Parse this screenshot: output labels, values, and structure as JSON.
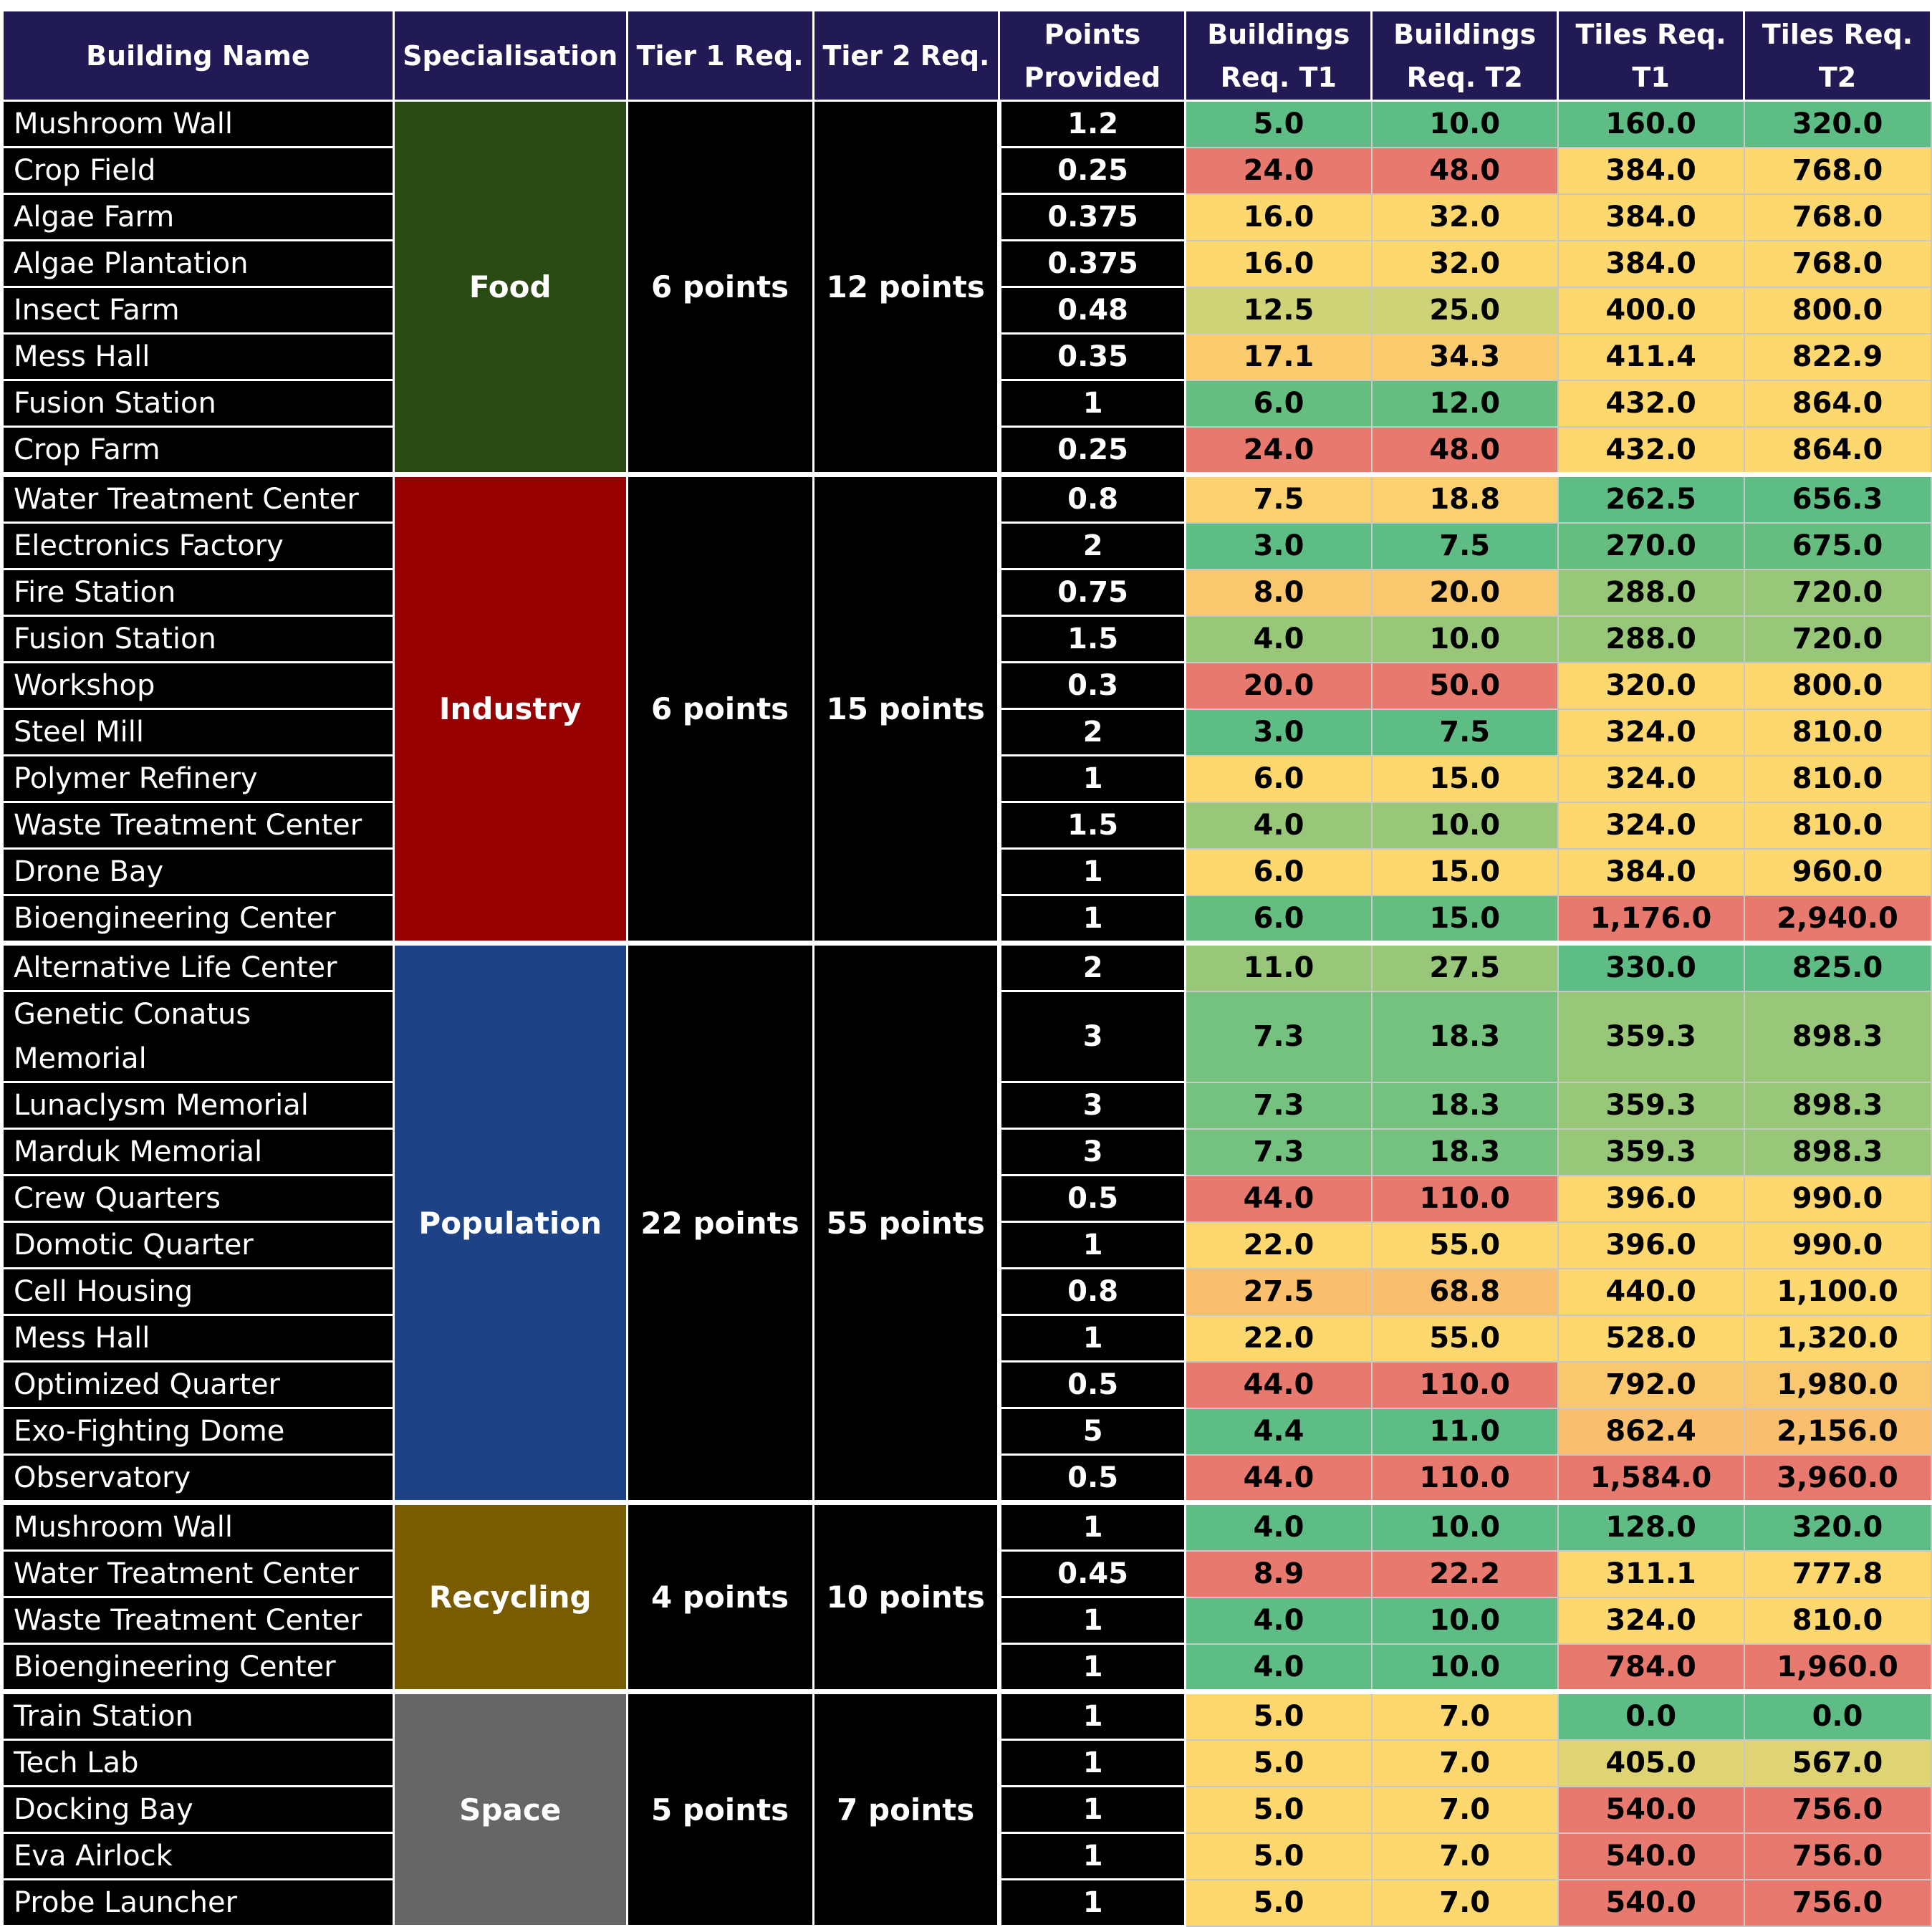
{
  "headers": {
    "building_name": "Building Name",
    "specialisation": "Specialisation",
    "tier1": "Tier 1 Req.",
    "tier2": "Tier 2 Req.",
    "points": "Points Provided",
    "bt1": "Buildings Req. T1",
    "bt2": "Buildings Req. T2",
    "tt1": "Tiles Req. T1",
    "tt2": "Tiles Req. T2"
  },
  "colors": {
    "header_bg": "#211a54",
    "food": "#2a4a14",
    "industry": "#960000",
    "population": "#1e4286",
    "recycling": "#7a5c00",
    "space": "#666666",
    "scale_green": "#5dbd84",
    "scale_yellow": "#fdd86e",
    "scale_orange": "#f9bf6e",
    "scale_red": "#e8796e"
  },
  "groups": [
    {
      "name": "Food",
      "color": "#2a4a14",
      "tier1": "6 points",
      "tier2": "12 points",
      "rows": [
        {
          "name": "Mushroom Wall",
          "points": "1.2",
          "bt1": "5.0",
          "bt2": "10.0",
          "tt1": "160.0",
          "tt2": "320.0",
          "c": [
            "#5dbd84",
            "#5dbd84",
            "#5dbd84",
            "#5dbd84"
          ]
        },
        {
          "name": "Crop Field",
          "points": "0.25",
          "bt1": "24.0",
          "bt2": "48.0",
          "tt1": "384.0",
          "tt2": "768.0",
          "c": [
            "#e8796e",
            "#e8796e",
            "#fdd86e",
            "#fdd86e"
          ]
        },
        {
          "name": "Algae Farm",
          "points": "0.375",
          "bt1": "16.0",
          "bt2": "32.0",
          "tt1": "384.0",
          "tt2": "768.0",
          "c": [
            "#fdd86e",
            "#fdd86e",
            "#fdd86e",
            "#fdd86e"
          ]
        },
        {
          "name": "Algae Plantation",
          "points": "0.375",
          "bt1": "16.0",
          "bt2": "32.0",
          "tt1": "384.0",
          "tt2": "768.0",
          "c": [
            "#fdd86e",
            "#fdd86e",
            "#fdd86e",
            "#fdd86e"
          ]
        },
        {
          "name": "Insect Farm",
          "points": "0.48",
          "bt1": "12.5",
          "bt2": "25.0",
          "tt1": "400.0",
          "tt2": "800.0",
          "c": [
            "#cfd377",
            "#cfd377",
            "#fdd86e",
            "#fdd86e"
          ]
        },
        {
          "name": "Mess Hall",
          "points": "0.35",
          "bt1": "17.1",
          "bt2": "34.3",
          "tt1": "411.4",
          "tt2": "822.9",
          "c": [
            "#fbcc6e",
            "#fbcc6e",
            "#fdd86e",
            "#fdd86e"
          ]
        },
        {
          "name": "Fusion Station",
          "points": "1",
          "bt1": "6.0",
          "bt2": "12.0",
          "tt1": "432.0",
          "tt2": "864.0",
          "c": [
            "#66bd80",
            "#66bd80",
            "#fdd86e",
            "#fdd86e"
          ]
        },
        {
          "name": "Crop Farm",
          "points": "0.25",
          "bt1": "24.0",
          "bt2": "48.0",
          "tt1": "432.0",
          "tt2": "864.0",
          "c": [
            "#e8796e",
            "#e8796e",
            "#fdd86e",
            "#fdd86e"
          ]
        }
      ]
    },
    {
      "name": "Industry",
      "color": "#960000",
      "tier1": "6 points",
      "tier2": "15 points",
      "rows": [
        {
          "name": "Water Treatment Center",
          "points": "0.8",
          "bt1": "7.5",
          "bt2": "18.8",
          "tt1": "262.5",
          "tt2": "656.3",
          "c": [
            "#fbd06e",
            "#fbd06e",
            "#5dbd84",
            "#5dbd84"
          ]
        },
        {
          "name": "Electronics Factory",
          "points": "2",
          "bt1": "3.0",
          "bt2": "7.5",
          "tt1": "270.0",
          "tt2": "675.0",
          "c": [
            "#5dbd84",
            "#5dbd84",
            "#66bd80",
            "#66bd80"
          ]
        },
        {
          "name": "Fire Station",
          "points": "0.75",
          "bt1": "8.0",
          "bt2": "20.0",
          "tt1": "288.0",
          "tt2": "720.0",
          "c": [
            "#f9c86e",
            "#f9c86e",
            "#98c77a",
            "#98c77a"
          ]
        },
        {
          "name": "Fusion Station",
          "points": "1.5",
          "bt1": "4.0",
          "bt2": "10.0",
          "tt1": "288.0",
          "tt2": "720.0",
          "c": [
            "#98c77a",
            "#98c77a",
            "#98c77a",
            "#98c77a"
          ]
        },
        {
          "name": "Workshop",
          "points": "0.3",
          "bt1": "20.0",
          "bt2": "50.0",
          "tt1": "320.0",
          "tt2": "800.0",
          "c": [
            "#e8796e",
            "#e8796e",
            "#fdd86e",
            "#fdd86e"
          ]
        },
        {
          "name": "Steel Mill",
          "points": "2",
          "bt1": "3.0",
          "bt2": "7.5",
          "tt1": "324.0",
          "tt2": "810.0",
          "c": [
            "#5dbd84",
            "#5dbd84",
            "#fdd86e",
            "#fdd86e"
          ]
        },
        {
          "name": "Polymer Refinery",
          "points": "1",
          "bt1": "6.0",
          "bt2": "15.0",
          "tt1": "324.0",
          "tt2": "810.0",
          "c": [
            "#fdd86e",
            "#fdd86e",
            "#fdd86e",
            "#fdd86e"
          ]
        },
        {
          "name": "Waste Treatment Center",
          "points": "1.5",
          "bt1": "4.0",
          "bt2": "10.0",
          "tt1": "324.0",
          "tt2": "810.0",
          "c": [
            "#98c77a",
            "#98c77a",
            "#fdd86e",
            "#fdd86e"
          ]
        },
        {
          "name": "Drone Bay",
          "points": "1",
          "bt1": "6.0",
          "bt2": "15.0",
          "tt1": "384.0",
          "tt2": "960.0",
          "c": [
            "#fdd86e",
            "#fdd86e",
            "#fdd86e",
            "#fdd86e"
          ]
        },
        {
          "name": "Bioengineering Center",
          "points": "1",
          "bt1": "6.0",
          "bt2": "15.0",
          "tt1": "1,176.0",
          "tt2": "2,940.0",
          "c": [
            "#66bd80",
            "#66bd80",
            "#e8796e",
            "#e8796e"
          ]
        }
      ]
    },
    {
      "name": "Population",
      "color": "#1e4286",
      "tier1": "22 points",
      "tier2": "55 points",
      "rows": [
        {
          "name": "Alternative Life Center",
          "points": "2",
          "bt1": "11.0",
          "bt2": "27.5",
          "tt1": "330.0",
          "tt2": "825.0",
          "c": [
            "#98c77a",
            "#98c77a",
            "#5dbd84",
            "#5dbd84"
          ]
        },
        {
          "name": "Genetic Conatus Memorial",
          "tall": true,
          "points": "3",
          "bt1": "7.3",
          "bt2": "18.3",
          "tt1": "359.3",
          "tt2": "898.3",
          "c": [
            "#75c17f",
            "#75c17f",
            "#98c77a",
            "#98c77a"
          ]
        },
        {
          "name": "Lunaclysm Memorial",
          "points": "3",
          "bt1": "7.3",
          "bt2": "18.3",
          "tt1": "359.3",
          "tt2": "898.3",
          "c": [
            "#75c17f",
            "#75c17f",
            "#98c77a",
            "#98c77a"
          ]
        },
        {
          "name": "Marduk Memorial",
          "points": "3",
          "bt1": "7.3",
          "bt2": "18.3",
          "tt1": "359.3",
          "tt2": "898.3",
          "c": [
            "#75c17f",
            "#75c17f",
            "#98c77a",
            "#98c77a"
          ]
        },
        {
          "name": "Crew Quarters",
          "points": "0.5",
          "bt1": "44.0",
          "bt2": "110.0",
          "tt1": "396.0",
          "tt2": "990.0",
          "c": [
            "#e8796e",
            "#e8796e",
            "#fdd86e",
            "#fdd86e"
          ]
        },
        {
          "name": "Domotic Quarter",
          "points": "1",
          "bt1": "22.0",
          "bt2": "55.0",
          "tt1": "396.0",
          "tt2": "990.0",
          "c": [
            "#fdd86e",
            "#fdd86e",
            "#fdd86e",
            "#fdd86e"
          ]
        },
        {
          "name": "Cell Housing",
          "points": "0.8",
          "bt1": "27.5",
          "bt2": "68.8",
          "tt1": "440.0",
          "tt2": "1,100.0",
          "c": [
            "#f9bf6e",
            "#f9bf6e",
            "#fdd86e",
            "#fdd86e"
          ]
        },
        {
          "name": "Mess Hall",
          "points": "1",
          "bt1": "22.0",
          "bt2": "55.0",
          "tt1": "528.0",
          "tt2": "1,320.0",
          "c": [
            "#fdd86e",
            "#fdd86e",
            "#fdd86e",
            "#fdd86e"
          ]
        },
        {
          "name": "Optimized Quarter",
          "points": "0.5",
          "bt1": "44.0",
          "bt2": "110.0",
          "tt1": "792.0",
          "tt2": "1,980.0",
          "c": [
            "#e8796e",
            "#e8796e",
            "#f9c86e",
            "#f9c86e"
          ]
        },
        {
          "name": "Exo-Fighting Dome",
          "points": "5",
          "bt1": "4.4",
          "bt2": "11.0",
          "tt1": "862.4",
          "tt2": "2,156.0",
          "c": [
            "#5dbd84",
            "#5dbd84",
            "#f9bf6e",
            "#f9bf6e"
          ]
        },
        {
          "name": "Observatory",
          "points": "0.5",
          "bt1": "44.0",
          "bt2": "110.0",
          "tt1": "1,584.0",
          "tt2": "3,960.0",
          "c": [
            "#e8796e",
            "#e8796e",
            "#e8796e",
            "#e8796e"
          ]
        }
      ]
    },
    {
      "name": "Recycling",
      "color": "#7a5c00",
      "tier1": "4 points",
      "tier2": "10 points",
      "rows": [
        {
          "name": "Mushroom Wall",
          "points": "1",
          "bt1": "4.0",
          "bt2": "10.0",
          "tt1": "128.0",
          "tt2": "320.0",
          "c": [
            "#5dbd84",
            "#5dbd84",
            "#5dbd84",
            "#5dbd84"
          ]
        },
        {
          "name": "Water Treatment Center",
          "points": "0.45",
          "bt1": "8.9",
          "bt2": "22.2",
          "tt1": "311.1",
          "tt2": "777.8",
          "c": [
            "#e8796e",
            "#e8796e",
            "#fdd86e",
            "#fdd86e"
          ]
        },
        {
          "name": "Waste Treatment Center",
          "points": "1",
          "bt1": "4.0",
          "bt2": "10.0",
          "tt1": "324.0",
          "tt2": "810.0",
          "c": [
            "#5dbd84",
            "#5dbd84",
            "#fdd86e",
            "#fdd86e"
          ]
        },
        {
          "name": "Bioengineering Center",
          "points": "1",
          "bt1": "4.0",
          "bt2": "10.0",
          "tt1": "784.0",
          "tt2": "1,960.0",
          "c": [
            "#5dbd84",
            "#5dbd84",
            "#e8796e",
            "#e8796e"
          ]
        }
      ]
    },
    {
      "name": "Space",
      "color": "#666666",
      "tier1": "5 points",
      "tier2": "7 points",
      "rows": [
        {
          "name": "Train Station",
          "points": "1",
          "bt1": "5.0",
          "bt2": "7.0",
          "tt1": "0.0",
          "tt2": "0.0",
          "c": [
            "#fdd86e",
            "#fdd86e",
            "#5dbd84",
            "#5dbd84"
          ]
        },
        {
          "name": "Tech Lab",
          "points": "1",
          "bt1": "5.0",
          "bt2": "7.0",
          "tt1": "405.0",
          "tt2": "567.0",
          "c": [
            "#fdd86e",
            "#fdd86e",
            "#dfd474",
            "#dfd474"
          ]
        },
        {
          "name": "Docking Bay",
          "points": "1",
          "bt1": "5.0",
          "bt2": "7.0",
          "tt1": "540.0",
          "tt2": "756.0",
          "c": [
            "#fdd86e",
            "#fdd86e",
            "#e8796e",
            "#e8796e"
          ]
        },
        {
          "name": "Eva Airlock",
          "points": "1",
          "bt1": "5.0",
          "bt2": "7.0",
          "tt1": "540.0",
          "tt2": "756.0",
          "c": [
            "#fdd86e",
            "#fdd86e",
            "#e8796e",
            "#e8796e"
          ]
        },
        {
          "name": "Probe Launcher",
          "points": "1",
          "bt1": "5.0",
          "bt2": "7.0",
          "tt1": "540.0",
          "tt2": "756.0",
          "c": [
            "#fdd86e",
            "#fdd86e",
            "#e8796e",
            "#e8796e"
          ]
        }
      ]
    }
  ]
}
